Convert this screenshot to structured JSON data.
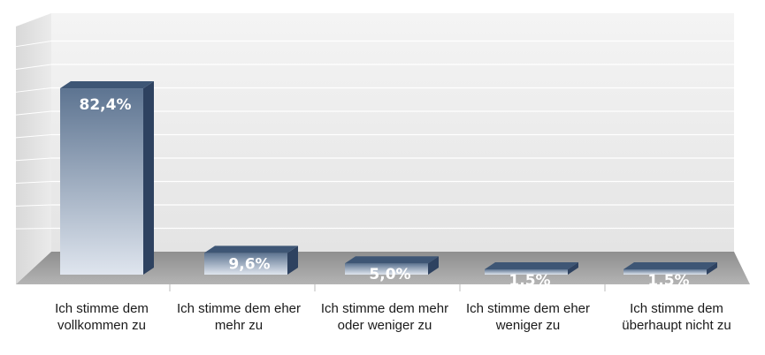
{
  "chart_data": {
    "type": "bar",
    "title": "",
    "xlabel": "",
    "ylabel": "",
    "ylim": [
      0,
      100
    ],
    "grid": true,
    "three_d": true,
    "categories": [
      "Ich stimme dem vollkommen zu",
      "Ich stimme dem eher mehr zu",
      "Ich stimme dem mehr oder weniger zu",
      "Ich stimme dem eher weniger  zu",
      "Ich stimme dem überhaupt nicht zu"
    ],
    "values": [
      82.4,
      9.6,
      5.0,
      1.5,
      1.5
    ],
    "data_labels": [
      "82,4%",
      "9,6%",
      "5,0%",
      "1,5%",
      "1,5%"
    ],
    "colors": {
      "bar_top": "#3e5675",
      "bar_front_top": "#5d7491",
      "bar_front_bottom": "#dfe5ee",
      "bar_side": "#2e4260",
      "wall": "#ececec",
      "floor": "#9c9c9c",
      "grid": "#ffffff"
    }
  }
}
